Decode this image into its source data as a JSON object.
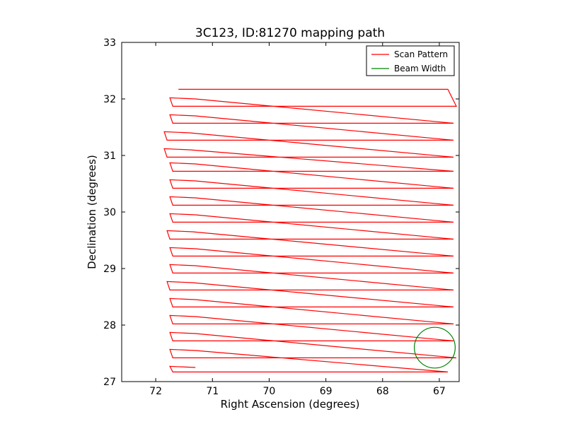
{
  "chart_data": {
    "type": "line",
    "title": "3C123, ID:81270 mapping path",
    "xlabel": "Right Ascension (degrees)",
    "ylabel": "Declination (degrees)",
    "xlim": [
      72.6,
      66.65
    ],
    "ylim": [
      27.0,
      33.0
    ],
    "x_inverted": true,
    "xticks": [
      72,
      71,
      70,
      69,
      68,
      67
    ],
    "yticks": [
      27,
      28,
      29,
      30,
      31,
      32,
      33
    ],
    "grid": false,
    "legend_position": "top-right",
    "series": [
      {
        "name": "Scan Pattern",
        "color": "#ff0000",
        "style": "line",
        "rows": [
          {
            "dec_right": 32.17,
            "dec_left": 32.17,
            "ra_left": 71.6,
            "ra_right": 66.85
          },
          {
            "dec_right": 31.87,
            "dec_left": 32.02,
            "ra_left": 71.75,
            "ra_right": 66.7
          },
          {
            "dec_right": 31.57,
            "dec_left": 31.72,
            "ra_left": 71.75,
            "ra_right": 66.75
          },
          {
            "dec_right": 31.27,
            "dec_left": 31.42,
            "ra_left": 71.85,
            "ra_right": 66.75
          },
          {
            "dec_right": 30.97,
            "dec_left": 31.12,
            "ra_left": 71.85,
            "ra_right": 66.75
          },
          {
            "dec_right": 30.72,
            "dec_left": 30.87,
            "ra_left": 71.75,
            "ra_right": 66.75
          },
          {
            "dec_right": 30.42,
            "dec_left": 30.57,
            "ra_left": 71.75,
            "ra_right": 66.75
          },
          {
            "dec_right": 30.12,
            "dec_left": 30.27,
            "ra_left": 71.75,
            "ra_right": 66.75
          },
          {
            "dec_right": 29.82,
            "dec_left": 29.97,
            "ra_left": 71.75,
            "ra_right": 66.75
          },
          {
            "dec_right": 29.52,
            "dec_left": 29.67,
            "ra_left": 71.8,
            "ra_right": 66.75
          },
          {
            "dec_right": 29.22,
            "dec_left": 29.37,
            "ra_left": 71.75,
            "ra_right": 66.75
          },
          {
            "dec_right": 28.92,
            "dec_left": 29.07,
            "ra_left": 71.75,
            "ra_right": 66.75
          },
          {
            "dec_right": 28.62,
            "dec_left": 28.77,
            "ra_left": 71.8,
            "ra_right": 66.75
          },
          {
            "dec_right": 28.32,
            "dec_left": 28.47,
            "ra_left": 71.75,
            "ra_right": 66.75
          },
          {
            "dec_right": 28.02,
            "dec_left": 28.17,
            "ra_left": 71.75,
            "ra_right": 66.75
          },
          {
            "dec_right": 27.72,
            "dec_left": 27.87,
            "ra_left": 71.75,
            "ra_right": 66.75
          },
          {
            "dec_right": 27.42,
            "dec_left": 27.57,
            "ra_left": 71.75,
            "ra_right": 66.7
          },
          {
            "dec_right": 27.17,
            "dec_left": 27.27,
            "ra_left": 71.75,
            "ra_right": 66.85
          }
        ]
      },
      {
        "name": "Beam Width",
        "color": "#008000",
        "style": "circle",
        "center_ra": 67.08,
        "center_dec": 27.6,
        "radius_deg": 0.36
      }
    ]
  }
}
